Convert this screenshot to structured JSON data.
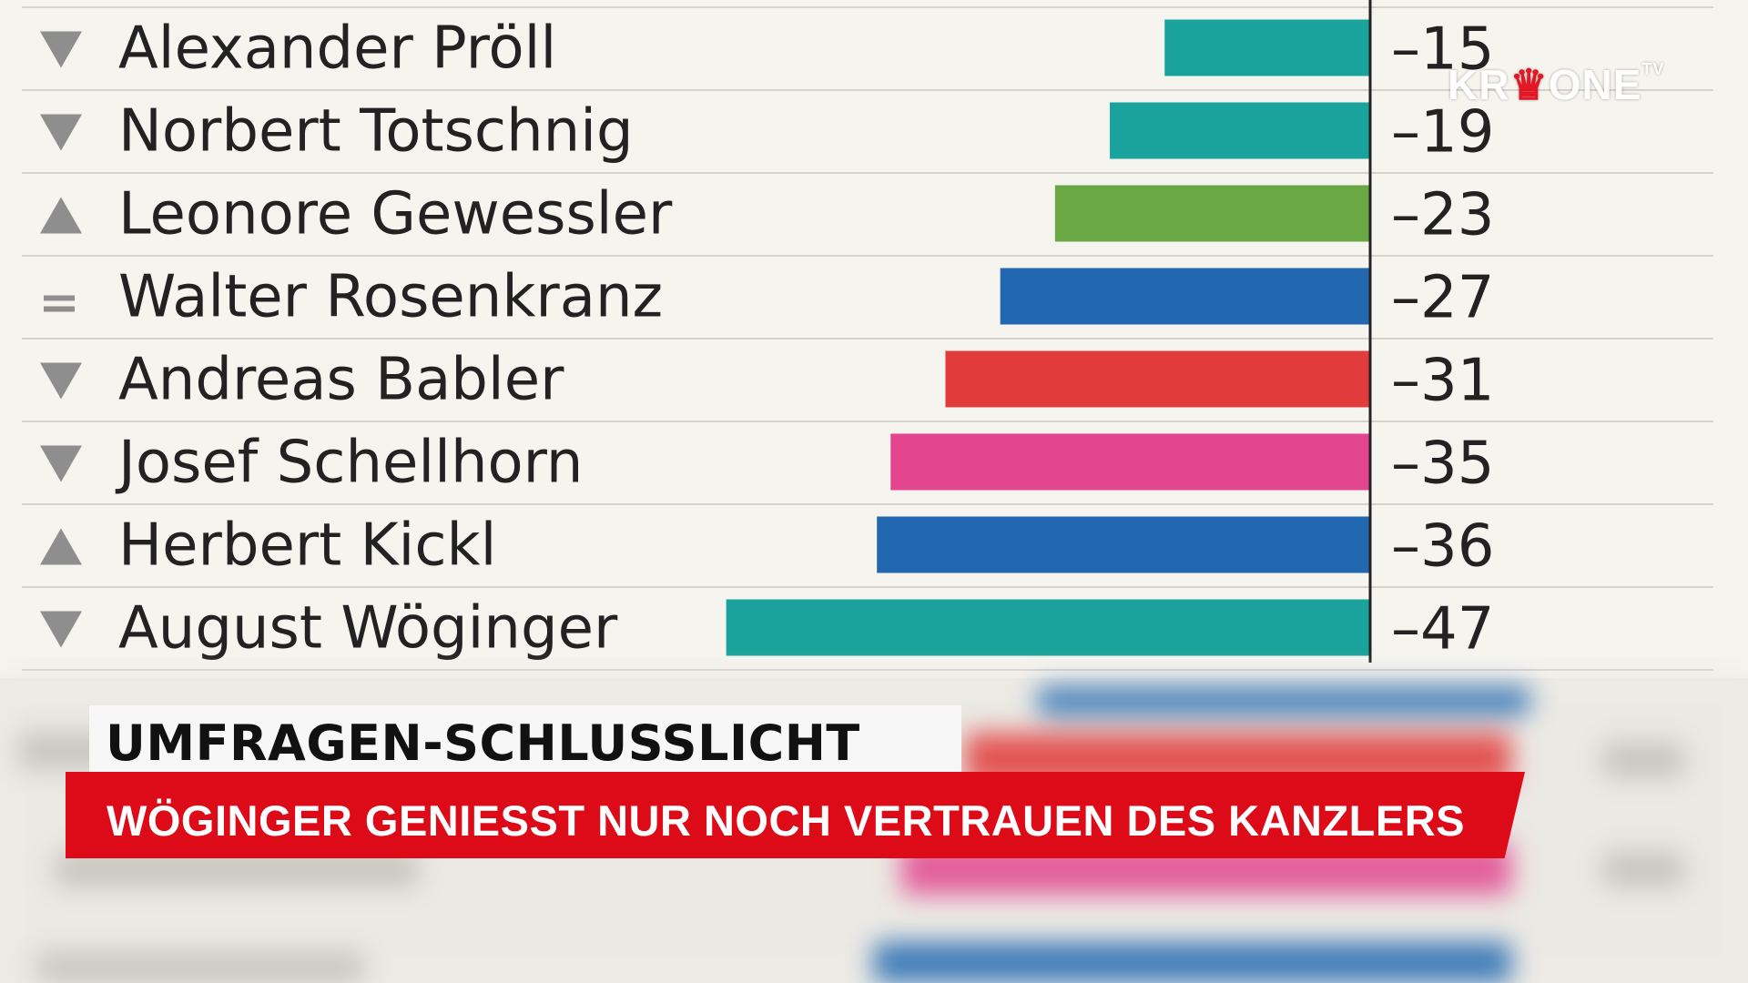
{
  "chart_data": {
    "type": "bar",
    "orientation": "horizontal",
    "categories": [
      "Alexander Pröll",
      "Norbert Totschnig",
      "Leonore Gewessler",
      "Walter Rosenkranz",
      "Andreas Babler",
      "Josef Schellhorn",
      "Herbert Kickl",
      "August Wöginger"
    ],
    "values": [
      -15,
      -19,
      -23,
      -27,
      -31,
      -35,
      -36,
      -47
    ],
    "value_labels": [
      "–15",
      "–19",
      "–23",
      "–27",
      "–31",
      "–35",
      "–36",
      "–47"
    ],
    "trends": [
      "down",
      "down",
      "up",
      "equal",
      "down",
      "down",
      "up",
      "down"
    ],
    "colors": [
      "#1aa39c",
      "#1aa39c",
      "#6aa745",
      "#2168b0",
      "#e23b3b",
      "#e3468f",
      "#2168b0",
      "#1aa39c"
    ],
    "xlim": [
      -50,
      0
    ]
  },
  "lower_third": {
    "headline": "UMFRAGEN-SCHLUSSLICHT",
    "subline": "WÖGINGER GENIESST NUR NOCH VERTRAUEN DES KANZLERS"
  },
  "logo": {
    "text_left": "KR",
    "text_crown": "♛",
    "text_right": "ONE",
    "suffix": "TV"
  },
  "colors": {
    "accent_red": "#dd0a18",
    "panel_bg": "#f6f4ef",
    "trend_gray": "#8e8e8e"
  }
}
